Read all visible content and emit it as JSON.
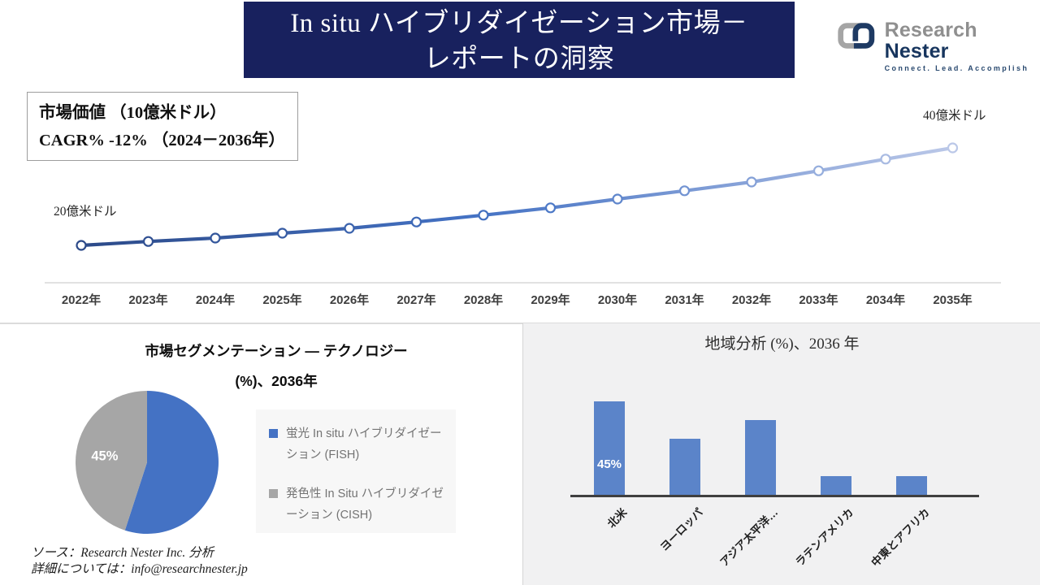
{
  "header": {
    "title_line1": "In situ ハイブリダイゼーション市場－",
    "title_line2": "レポートの洞察"
  },
  "logo": {
    "name_part1": "Research",
    "name_part2": "Nester",
    "tagline": "Connect. Lead. Accomplish"
  },
  "info_box": {
    "line1": "市場価値 （10億米ドル）",
    "line2": "CAGR% -12% （2024－2036年）"
  },
  "sections": {
    "pie": {
      "title_line1": "市場セグメンテーション ― テクノロジー",
      "title_line2": "(%)、2036年"
    }
  },
  "footer": {
    "source_line": "ソース：Research Nester Inc. 分析",
    "contact_line": "詳細については：info@researchnester.jp"
  },
  "colors": {
    "header_navy": "#18215E",
    "pie_blue": "#4472C4",
    "pie_gray": "#A6A6A6",
    "bar_blue": "#5B84C9",
    "line_dark": "#2C4A89",
    "line_mid": "#4472C4",
    "line_light": "#BBC8E8"
  },
  "chart_data": [
    {
      "type": "line",
      "title": "市場価値（10億米ドル）",
      "xlabel": "",
      "ylabel": "市場価値（10億米ドル）",
      "x": [
        "2022年",
        "2023年",
        "2024年",
        "2025年",
        "2026年",
        "2027年",
        "2028年",
        "2029年",
        "2030年",
        "2031年",
        "2032年",
        "2033年",
        "2034年",
        "2035年"
      ],
      "series": [
        {
          "name": "市場価値",
          "values": [
            2.0,
            2.08,
            2.15,
            2.25,
            2.35,
            2.48,
            2.62,
            2.77,
            2.95,
            3.12,
            3.3,
            3.53,
            3.77,
            4.0
          ]
        }
      ],
      "ylim": [
        1.2,
        4.6
      ],
      "grid": false,
      "annotations": {
        "start_label": "20億米ドル",
        "end_label": "40億米ドル"
      }
    },
    {
      "type": "pie",
      "title": "市場セグメンテーション ― テクノロジー (%)、2036年",
      "legend_position": "right",
      "slices": [
        {
          "label": "蛍光 In situ ハイブリダイゼーション (FISH)",
          "value": 55,
          "color": "#4472C4",
          "data_label": ""
        },
        {
          "label": "発色性 In Situ ハイブリダイゼーション (CISH)",
          "value": 45,
          "color": "#A6A6A6",
          "data_label": "45%"
        }
      ]
    },
    {
      "type": "bar",
      "title": "地域分析 (%)、2036 年",
      "categories": [
        "北米",
        "ヨーロッパ",
        "アジア太平洋…",
        "ラテンアメリカ",
        "中東とアフリカ"
      ],
      "values": [
        45,
        27,
        36,
        9,
        9
      ],
      "data_labels": [
        "45%",
        "",
        "",
        "",
        ""
      ],
      "bar_color": "#5B84C9",
      "grid": false,
      "ylim": [
        0,
        50
      ]
    }
  ]
}
